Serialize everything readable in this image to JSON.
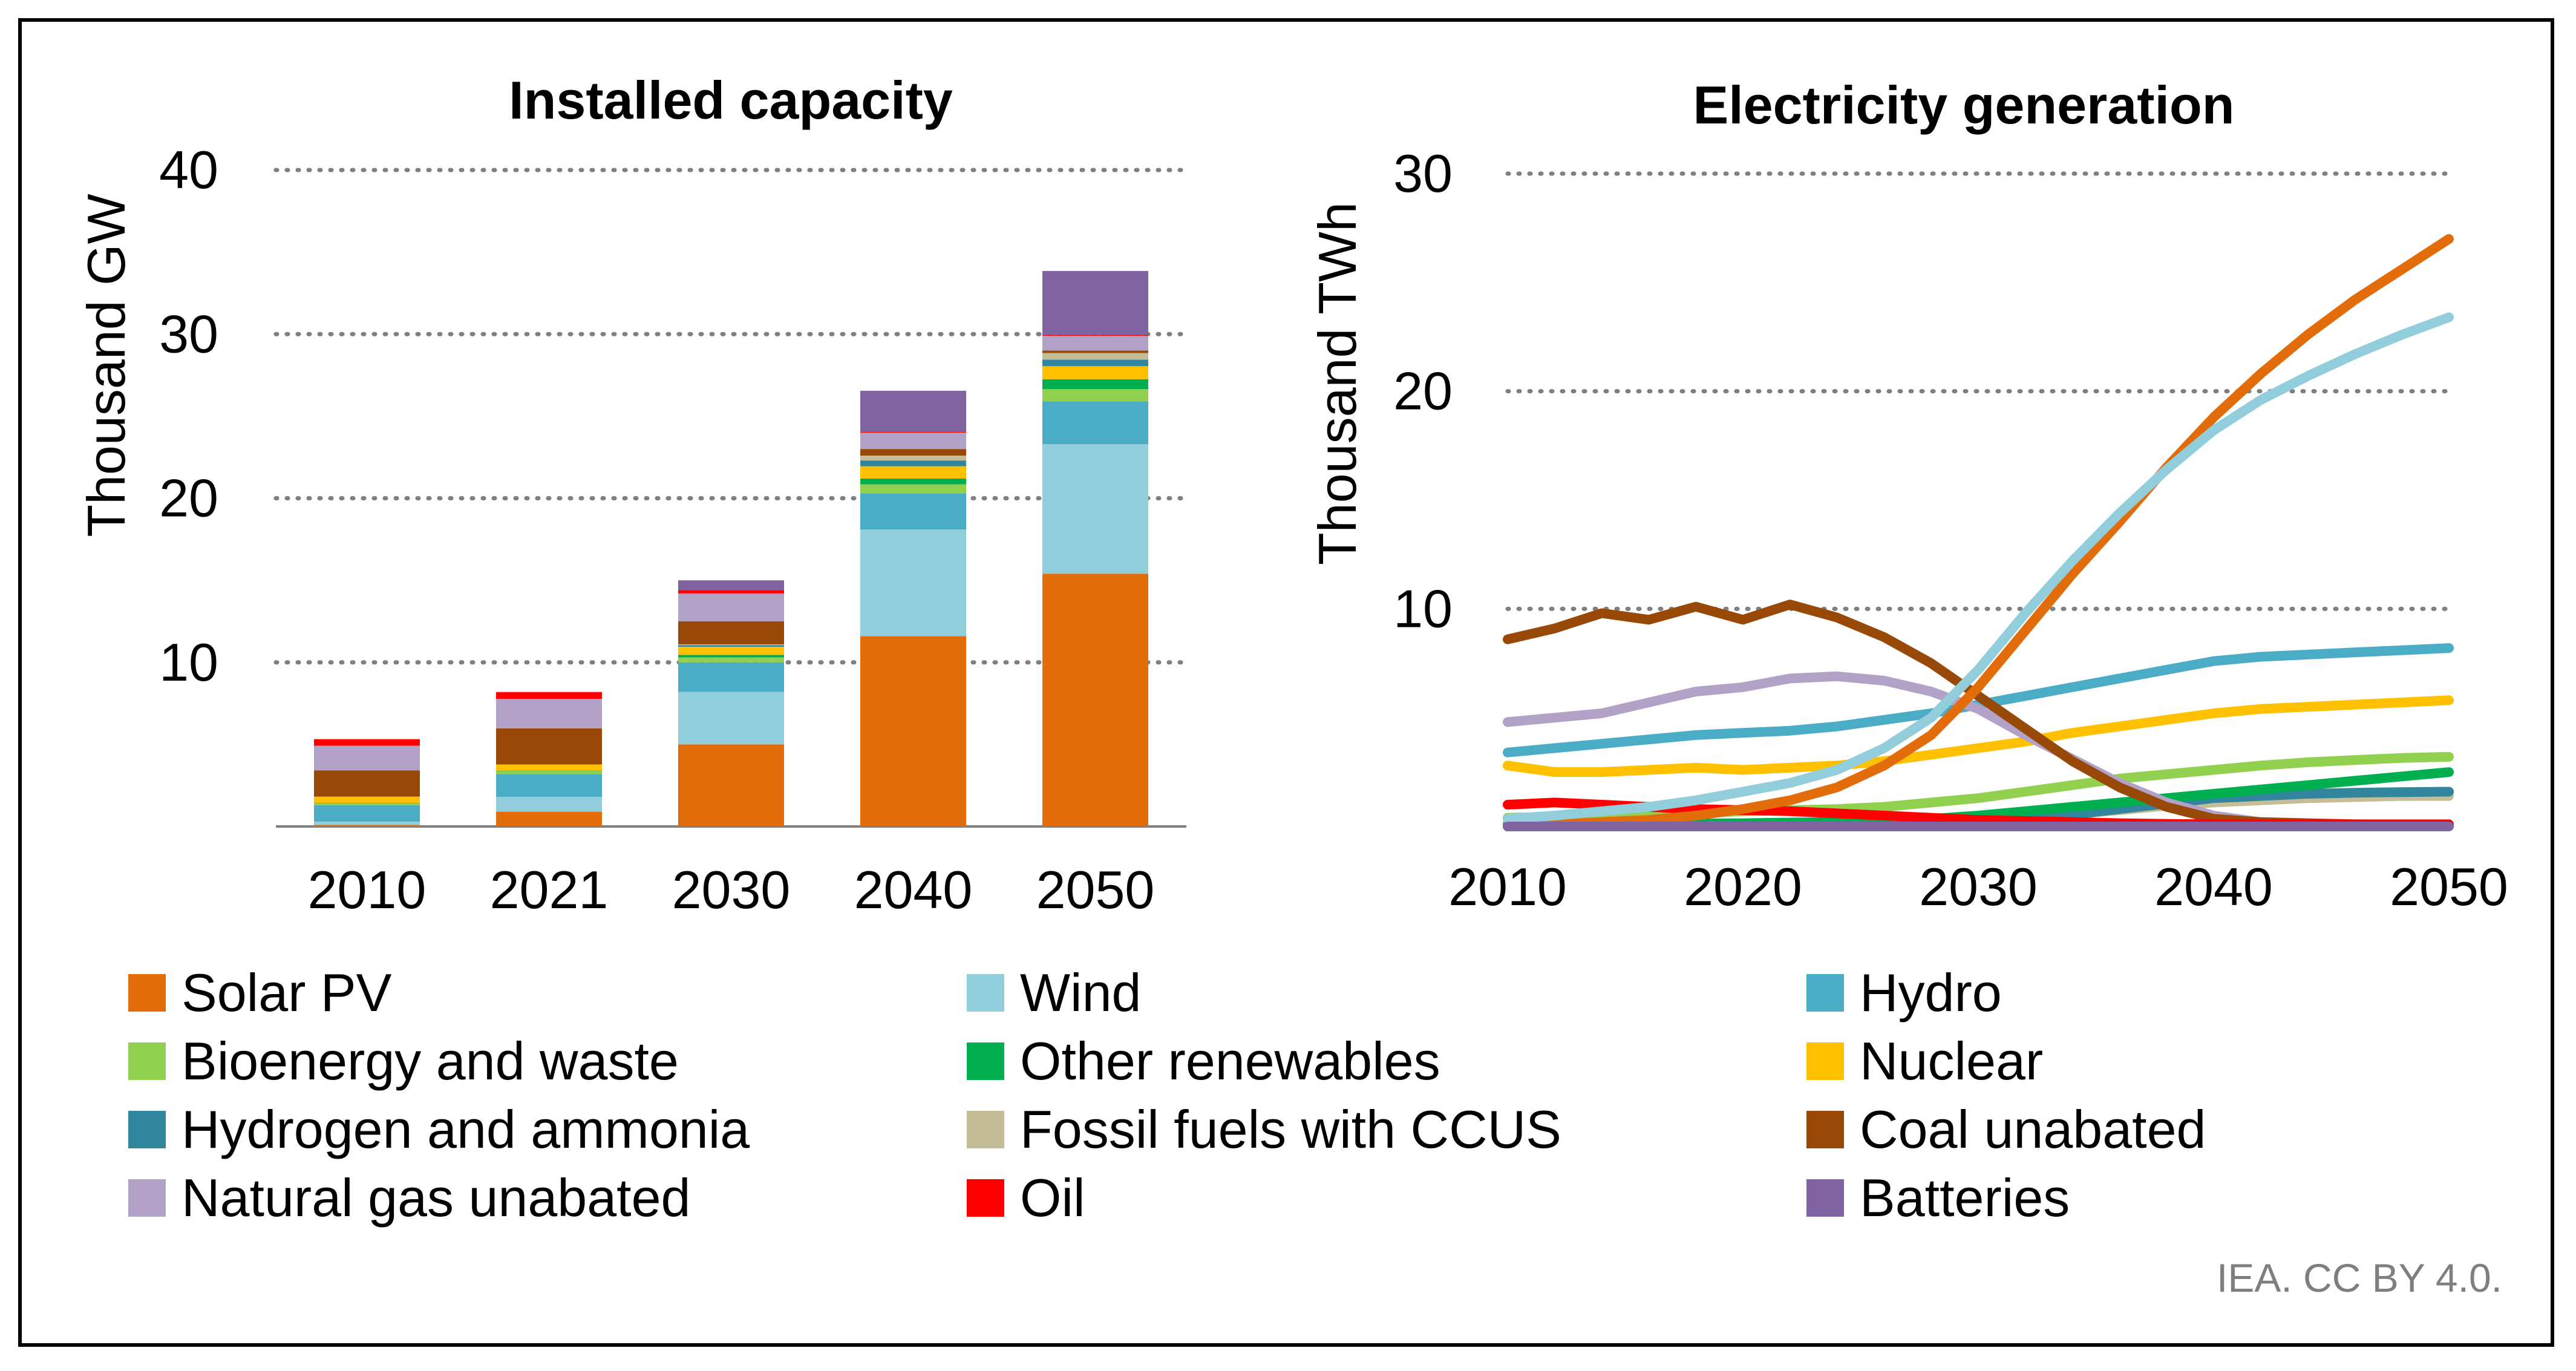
{
  "credit": "IEA. CC BY 4.0.",
  "colors": {
    "Solar PV": "#E36C0A",
    "Wind": "#92CDDC",
    "Hydro": "#4BACC6",
    "Bioenergy and waste": "#92D050",
    "Other renewables": "#00B050",
    "Nuclear": "#FFC000",
    "Hydrogen and ammonia": "#31859C",
    "Fossil fuels with CCUS": "#C4BD97",
    "Coal unabated": "#984807",
    "Natural gas unabated": "#B3A2C7",
    "Oil": "#FF0000",
    "Batteries": "#8064A2"
  },
  "legend": [
    "Solar PV",
    "Wind",
    "Hydro",
    "Bioenergy and waste",
    "Other renewables",
    "Nuclear",
    "Hydrogen and ammonia",
    "Fossil fuels with CCUS",
    "Coal unabated",
    "Natural gas unabated",
    "Oil",
    "Batteries"
  ],
  "chart_data": [
    {
      "type": "bar",
      "stacked": true,
      "title": "Installed capacity",
      "ylabel": "Thousand GW",
      "xlabel": "",
      "ylim": [
        0,
        40
      ],
      "yticks": [
        10,
        20,
        30,
        40
      ],
      "grid": true,
      "categories": [
        "2010",
        "2021",
        "2030",
        "2040",
        "2050"
      ],
      "series": [
        {
          "name": "Solar PV",
          "values": [
            0.1,
            0.9,
            5.0,
            11.6,
            15.4
          ]
        },
        {
          "name": "Wind",
          "values": [
            0.2,
            0.9,
            3.2,
            6.5,
            7.9
          ]
        },
        {
          "name": "Hydro",
          "values": [
            1.0,
            1.4,
            1.8,
            2.2,
            2.6
          ]
        },
        {
          "name": "Bioenergy and waste",
          "values": [
            0.1,
            0.15,
            0.3,
            0.55,
            0.75
          ]
        },
        {
          "name": "Other renewables",
          "values": [
            0.02,
            0.03,
            0.15,
            0.35,
            0.6
          ]
        },
        {
          "name": "Nuclear",
          "values": [
            0.4,
            0.4,
            0.5,
            0.75,
            0.8
          ]
        },
        {
          "name": "Hydrogen and ammonia",
          "values": [
            0,
            0,
            0.1,
            0.35,
            0.4
          ]
        },
        {
          "name": "Fossil fuels with CCUS",
          "values": [
            0,
            0,
            0.05,
            0.3,
            0.4
          ]
        },
        {
          "name": "Coal unabated",
          "values": [
            1.6,
            2.2,
            1.4,
            0.4,
            0.15
          ]
        },
        {
          "name": "Natural gas unabated",
          "values": [
            1.5,
            1.8,
            1.7,
            1.0,
            0.9
          ]
        },
        {
          "name": "Oil",
          "values": [
            0.4,
            0.4,
            0.2,
            0.05,
            0.05
          ]
        },
        {
          "name": "Batteries",
          "values": [
            0,
            0.02,
            0.6,
            2.5,
            3.9
          ]
        }
      ]
    },
    {
      "type": "line",
      "title": "Electricity generation",
      "ylabel": "Thousand TWh",
      "xlabel": "",
      "xlim": [
        2010,
        2050
      ],
      "ylim": [
        0,
        30
      ],
      "xticks": [
        2010,
        2020,
        2030,
        2040,
        2050
      ],
      "yticks": [
        10,
        20,
        30
      ],
      "grid": true,
      "x": [
        2010,
        2012,
        2014,
        2016,
        2018,
        2020,
        2022,
        2024,
        2026,
        2028,
        2030,
        2032,
        2034,
        2036,
        2038,
        2040,
        2042,
        2044,
        2046,
        2048,
        2050
      ],
      "series": [
        {
          "name": "Solar PV",
          "values": [
            0.03,
            0.1,
            0.2,
            0.3,
            0.5,
            0.8,
            1.2,
            1.8,
            2.8,
            4.2,
            6.4,
            9.0,
            11.6,
            14.0,
            16.5,
            18.8,
            20.8,
            22.6,
            24.2,
            25.6,
            27.0
          ]
        },
        {
          "name": "Wind",
          "values": [
            0.35,
            0.5,
            0.7,
            0.9,
            1.2,
            1.6,
            2.0,
            2.6,
            3.6,
            5.0,
            7.2,
            9.8,
            12.2,
            14.4,
            16.4,
            18.2,
            19.6,
            20.7,
            21.7,
            22.6,
            23.4
          ]
        },
        {
          "name": "Hydro",
          "values": [
            3.4,
            3.6,
            3.8,
            4.0,
            4.2,
            4.3,
            4.4,
            4.6,
            4.9,
            5.2,
            5.6,
            6.0,
            6.4,
            6.8,
            7.2,
            7.6,
            7.8,
            7.9,
            8.0,
            8.1,
            8.2
          ]
        },
        {
          "name": "Bioenergy and waste",
          "values": [
            0.4,
            0.45,
            0.5,
            0.55,
            0.6,
            0.7,
            0.75,
            0.8,
            0.9,
            1.1,
            1.3,
            1.6,
            1.9,
            2.2,
            2.4,
            2.6,
            2.8,
            2.95,
            3.05,
            3.15,
            3.2
          ]
        },
        {
          "name": "Other renewables",
          "values": [
            0.1,
            0.1,
            0.1,
            0.12,
            0.14,
            0.15,
            0.18,
            0.2,
            0.25,
            0.35,
            0.5,
            0.7,
            0.9,
            1.1,
            1.3,
            1.5,
            1.7,
            1.9,
            2.1,
            2.3,
            2.5
          ]
        },
        {
          "name": "Nuclear",
          "values": [
            2.8,
            2.5,
            2.5,
            2.6,
            2.7,
            2.6,
            2.7,
            2.8,
            3.0,
            3.3,
            3.6,
            3.9,
            4.3,
            4.6,
            4.9,
            5.2,
            5.4,
            5.5,
            5.6,
            5.7,
            5.8
          ]
        },
        {
          "name": "Hydrogen and ammonia",
          "values": [
            0,
            0,
            0,
            0,
            0,
            0,
            0,
            0.02,
            0.05,
            0.1,
            0.2,
            0.35,
            0.55,
            0.8,
            1.05,
            1.3,
            1.4,
            1.5,
            1.55,
            1.58,
            1.6
          ]
        },
        {
          "name": "Fossil fuels with CCUS",
          "values": [
            0,
            0,
            0,
            0,
            0,
            0,
            0,
            0.02,
            0.05,
            0.1,
            0.2,
            0.35,
            0.55,
            0.75,
            0.95,
            1.1,
            1.2,
            1.3,
            1.35,
            1.4,
            1.4
          ]
        },
        {
          "name": "Coal unabated",
          "values": [
            8.6,
            9.1,
            9.8,
            9.5,
            10.1,
            9.5,
            10.2,
            9.6,
            8.7,
            7.5,
            6.0,
            4.5,
            3.0,
            1.8,
            0.9,
            0.35,
            0.2,
            0.15,
            0.1,
            0.08,
            0.05
          ]
        },
        {
          "name": "Natural gas unabated",
          "values": [
            4.8,
            5.0,
            5.2,
            5.7,
            6.2,
            6.4,
            6.8,
            6.9,
            6.7,
            6.2,
            5.4,
            4.2,
            3.1,
            2.0,
            1.1,
            0.5,
            0.2,
            0.1,
            0.05,
            0.03,
            0.02
          ]
        },
        {
          "name": "Oil",
          "values": [
            1.0,
            1.1,
            1.0,
            0.9,
            0.8,
            0.75,
            0.7,
            0.6,
            0.5,
            0.4,
            0.3,
            0.25,
            0.2,
            0.15,
            0.12,
            0.1,
            0.1,
            0.1,
            0.1,
            0.1,
            0.1
          ]
        },
        {
          "name": "Batteries",
          "values": [
            0,
            0,
            0,
            0,
            0,
            0,
            0,
            0,
            0,
            0,
            0,
            0,
            0,
            0,
            0,
            0,
            0,
            0,
            0,
            0,
            0
          ]
        }
      ]
    }
  ]
}
